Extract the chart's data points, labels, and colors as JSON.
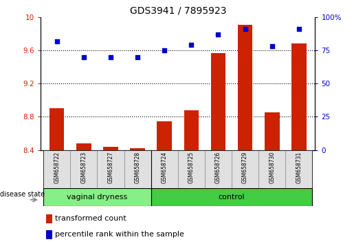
{
  "title": "GDS3941 / 7895923",
  "samples": [
    "GSM658722",
    "GSM658723",
    "GSM658727",
    "GSM658728",
    "GSM658724",
    "GSM658725",
    "GSM658726",
    "GSM658729",
    "GSM658730",
    "GSM658731"
  ],
  "bar_values": [
    8.9,
    8.48,
    8.44,
    8.42,
    8.75,
    8.88,
    9.57,
    9.91,
    8.85,
    9.68
  ],
  "scatter_values": [
    82,
    70,
    70,
    70,
    75,
    79,
    87,
    91,
    78,
    91
  ],
  "bar_bottom": 8.4,
  "ylim_left": [
    8.4,
    10.0
  ],
  "ylim_right": [
    0,
    100
  ],
  "yticks_left": [
    8.4,
    8.8,
    9.2,
    9.6,
    10.0
  ],
  "ytick_labels_left": [
    "8.4",
    "8.8",
    "9.2",
    "9.6",
    "10"
  ],
  "yticks_right": [
    0,
    25,
    50,
    75,
    100
  ],
  "ytick_labels_right": [
    "0",
    "25",
    "50",
    "75",
    "100%"
  ],
  "bar_color": "#cc2200",
  "scatter_color": "#0000cc",
  "groups": [
    {
      "label": "vaginal dryness",
      "start": 0,
      "end": 4,
      "color": "#88ee88"
    },
    {
      "label": "control",
      "start": 4,
      "end": 10,
      "color": "#44cc44"
    }
  ],
  "group_row_label": "disease state",
  "legend_bar_label": "transformed count",
  "legend_scatter_label": "percentile rank within the sample",
  "grid_color": "black",
  "bg_color": "#ffffff",
  "plot_bg_color": "#ffffff",
  "vaginal_color": "#aaeaaa",
  "control_color": "#44dd44"
}
